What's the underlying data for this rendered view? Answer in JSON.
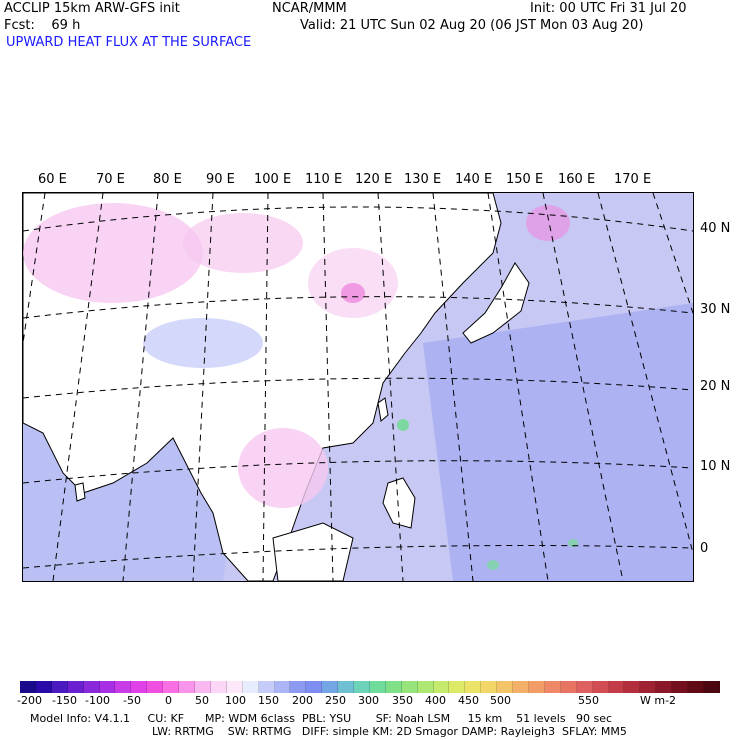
{
  "header": {
    "model_line": "ACCLIP 15km ARW-GFS init",
    "center_label": "NCAR/MMM",
    "init_line": "Init: 00 UTC Fri 31 Jul 20",
    "fcst_line": "Fcst:    69 h",
    "valid_line": "Valid: 21 UTC Sun 02 Aug 20 (06 JST Mon 03 Aug 20)",
    "field_title": "UPWARD HEAT FLUX AT THE SURFACE"
  },
  "map": {
    "lon_labels": [
      "60 E",
      "70 E",
      "80 E",
      "90 E",
      "100 E",
      "110 E",
      "120 E",
      "130 E",
      "140 E",
      "150 E",
      "160 E",
      "170 E"
    ],
    "lat_labels": [
      "40 N",
      "30 N",
      "20 N",
      "10 N",
      "0"
    ],
    "colors": {
      "ocean_base": "#c8c8f4",
      "land_base": "#ffffff",
      "pink": "#f6c8f0",
      "deep_pink": "#ee88e0",
      "blue": "#8c96ee",
      "green": "#7cd8a0",
      "coast": "#000000",
      "grid": "#000000"
    }
  },
  "colorbar": {
    "tick_labels": [
      "-200",
      "-150",
      "-100",
      "-50",
      "0",
      "50",
      "100",
      "150",
      "200",
      "250",
      "300",
      "350",
      "400",
      "450",
      "500",
      "550"
    ],
    "units": "W m-2",
    "colors": [
      "#1a0a8c",
      "#2a0aa8",
      "#4a1ac0",
      "#6a20d0",
      "#8a28dc",
      "#a830e4",
      "#c83ce8",
      "#e040e8",
      "#f050e0",
      "#f870e4",
      "#f894ec",
      "#fab8f2",
      "#fcd6f6",
      "#fde8fa",
      "#e8ecff",
      "#c6ccfa",
      "#aab4f6",
      "#8c9af2",
      "#7e8ef0",
      "#74a6e6",
      "#6ec0d2",
      "#6cd2b8",
      "#70dc9c",
      "#80e088",
      "#96e47a",
      "#aee872",
      "#c6ea6c",
      "#dcea68",
      "#ece468",
      "#f2d668",
      "#f4c468",
      "#f4b068",
      "#f29c68",
      "#ee8866",
      "#e87464",
      "#de6060",
      "#d24c54",
      "#c43c48",
      "#b22e3c",
      "#9e2232",
      "#8a1828",
      "#74101e",
      "#600a16",
      "#4c0610"
    ]
  },
  "footer": {
    "line1": "Model Info: V4.1.1     CU: KF      MP: WDM 6class  PBL: YSU       SF: Noah LSM     15 km    51 levels   90 sec",
    "line2": "LW: RRTMG    SW: RRTMG   DIFF: simple KM: 2D Smagor DAMP: Rayleigh3  SFLAY: MM5"
  }
}
